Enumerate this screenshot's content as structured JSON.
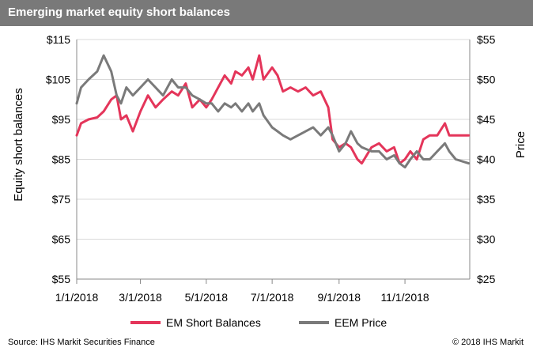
{
  "header": {
    "title": "Emerging market equity short balances"
  },
  "footer": {
    "source": "Source: IHS Markit Securities Finance",
    "copyright": "© 2018 IHS Markit"
  },
  "colors": {
    "em_short": "#e4355a",
    "eem_price": "#7a7a7a",
    "header_bg": "#797979"
  },
  "chart_data": {
    "type": "line",
    "title": "Emerging market equity short balances",
    "y_left": {
      "label": "Equity short balances",
      "ylim": [
        55,
        115
      ],
      "ticks": [
        55,
        65,
        75,
        85,
        95,
        105,
        115
      ],
      "tick_labels": [
        "$55",
        "$65",
        "$75",
        "$85",
        "$95",
        "$105",
        "$115"
      ]
    },
    "y_right": {
      "label": "Price",
      "ylim": [
        25,
        55
      ],
      "ticks": [
        25,
        30,
        35,
        40,
        45,
        50,
        55
      ],
      "tick_labels": [
        "$25",
        "$30",
        "$35",
        "$40",
        "$45",
        "$50",
        "$55"
      ]
    },
    "x_axis": {
      "range": [
        "2018-01-01",
        "2018-12-31"
      ],
      "ticks": [
        "2018-01-01",
        "2018-03-01",
        "2018-05-01",
        "2018-07-01",
        "2018-09-01",
        "2018-11-01"
      ],
      "tick_labels": [
        "1/1/2018",
        "3/1/2018",
        "5/1/2018",
        "7/1/2018",
        "9/1/2018",
        "11/1/2018"
      ]
    },
    "grid": "horizontal",
    "legend": "bottom-center",
    "series": [
      {
        "name": "EM Short Balances",
        "axis": "left",
        "color": "#e4355a",
        "points": [
          [
            "2018-01-01",
            91
          ],
          [
            "2018-01-05",
            94
          ],
          [
            "2018-01-12",
            95
          ],
          [
            "2018-01-20",
            95.5
          ],
          [
            "2018-01-26",
            97
          ],
          [
            "2018-02-02",
            100
          ],
          [
            "2018-02-07",
            101
          ],
          [
            "2018-02-11",
            95
          ],
          [
            "2018-02-16",
            96
          ],
          [
            "2018-02-22",
            92
          ],
          [
            "2018-03-01",
            97
          ],
          [
            "2018-03-08",
            101
          ],
          [
            "2018-03-15",
            98
          ],
          [
            "2018-03-22",
            100
          ],
          [
            "2018-03-30",
            102
          ],
          [
            "2018-04-05",
            101
          ],
          [
            "2018-04-12",
            104
          ],
          [
            "2018-04-18",
            98
          ],
          [
            "2018-04-25",
            100
          ],
          [
            "2018-05-01",
            98
          ],
          [
            "2018-05-06",
            100
          ],
          [
            "2018-05-12",
            103
          ],
          [
            "2018-05-18",
            106
          ],
          [
            "2018-05-24",
            104
          ],
          [
            "2018-05-28",
            107
          ],
          [
            "2018-06-03",
            106
          ],
          [
            "2018-06-09",
            108
          ],
          [
            "2018-06-13",
            105
          ],
          [
            "2018-06-19",
            111
          ],
          [
            "2018-06-23",
            105
          ],
          [
            "2018-07-01",
            108
          ],
          [
            "2018-07-06",
            106
          ],
          [
            "2018-07-11",
            102
          ],
          [
            "2018-07-18",
            103
          ],
          [
            "2018-07-25",
            102
          ],
          [
            "2018-08-01",
            103
          ],
          [
            "2018-08-08",
            101
          ],
          [
            "2018-08-15",
            102
          ],
          [
            "2018-08-22",
            98
          ],
          [
            "2018-08-26",
            90
          ],
          [
            "2018-09-01",
            88
          ],
          [
            "2018-09-07",
            89
          ],
          [
            "2018-09-12",
            88
          ],
          [
            "2018-09-18",
            85
          ],
          [
            "2018-09-22",
            84
          ],
          [
            "2018-10-01",
            88
          ],
          [
            "2018-10-08",
            89
          ],
          [
            "2018-10-15",
            87
          ],
          [
            "2018-10-22",
            88
          ],
          [
            "2018-10-27",
            84
          ],
          [
            "2018-11-01",
            85
          ],
          [
            "2018-11-06",
            87
          ],
          [
            "2018-11-12",
            85
          ],
          [
            "2018-11-18",
            90
          ],
          [
            "2018-11-24",
            91
          ],
          [
            "2018-12-01",
            91
          ],
          [
            "2018-12-08",
            94
          ],
          [
            "2018-12-12",
            91
          ],
          [
            "2018-12-18",
            91
          ],
          [
            "2018-12-30",
            91
          ]
        ]
      },
      {
        "name": "EEM Price",
        "axis": "right",
        "color": "#7a7a7a",
        "points": [
          [
            "2018-01-01",
            47
          ],
          [
            "2018-01-05",
            49
          ],
          [
            "2018-01-12",
            50
          ],
          [
            "2018-01-20",
            51
          ],
          [
            "2018-01-26",
            53
          ],
          [
            "2018-02-02",
            51
          ],
          [
            "2018-02-07",
            48
          ],
          [
            "2018-02-11",
            47
          ],
          [
            "2018-02-16",
            49
          ],
          [
            "2018-02-22",
            48
          ],
          [
            "2018-03-01",
            49
          ],
          [
            "2018-03-08",
            50
          ],
          [
            "2018-03-15",
            49
          ],
          [
            "2018-03-22",
            48
          ],
          [
            "2018-03-30",
            50
          ],
          [
            "2018-04-05",
            49
          ],
          [
            "2018-04-12",
            49
          ],
          [
            "2018-04-18",
            48
          ],
          [
            "2018-04-25",
            47.5
          ],
          [
            "2018-05-01",
            47
          ],
          [
            "2018-05-06",
            47
          ],
          [
            "2018-05-12",
            46
          ],
          [
            "2018-05-18",
            47
          ],
          [
            "2018-05-24",
            46.5
          ],
          [
            "2018-05-28",
            47
          ],
          [
            "2018-06-03",
            46
          ],
          [
            "2018-06-09",
            47
          ],
          [
            "2018-06-13",
            46
          ],
          [
            "2018-06-19",
            47
          ],
          [
            "2018-06-23",
            45.5
          ],
          [
            "2018-07-01",
            44
          ],
          [
            "2018-07-06",
            43.5
          ],
          [
            "2018-07-11",
            43
          ],
          [
            "2018-07-18",
            42.5
          ],
          [
            "2018-07-25",
            43
          ],
          [
            "2018-08-01",
            43.5
          ],
          [
            "2018-08-08",
            44
          ],
          [
            "2018-08-15",
            43
          ],
          [
            "2018-08-22",
            44
          ],
          [
            "2018-08-26",
            43
          ],
          [
            "2018-09-01",
            41
          ],
          [
            "2018-09-07",
            42
          ],
          [
            "2018-09-12",
            43.5
          ],
          [
            "2018-09-18",
            42
          ],
          [
            "2018-09-22",
            41.5
          ],
          [
            "2018-10-01",
            41
          ],
          [
            "2018-10-08",
            41
          ],
          [
            "2018-10-15",
            40
          ],
          [
            "2018-10-22",
            40.5
          ],
          [
            "2018-10-27",
            39.5
          ],
          [
            "2018-11-01",
            39
          ],
          [
            "2018-11-06",
            40
          ],
          [
            "2018-11-12",
            41
          ],
          [
            "2018-11-18",
            40
          ],
          [
            "2018-11-24",
            40
          ],
          [
            "2018-12-01",
            41
          ],
          [
            "2018-12-08",
            42
          ],
          [
            "2018-12-12",
            41
          ],
          [
            "2018-12-18",
            40
          ],
          [
            "2018-12-30",
            39.5
          ]
        ]
      }
    ]
  }
}
